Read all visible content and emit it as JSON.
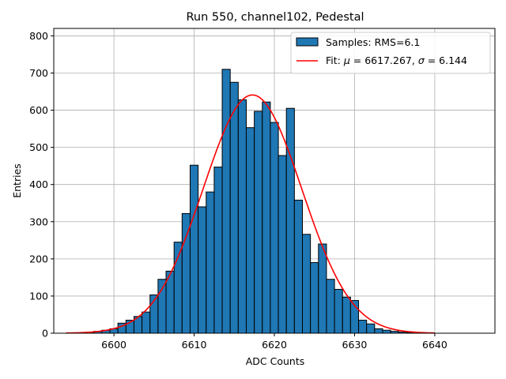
{
  "chart_data": {
    "type": "bar",
    "title": "Run 550, channel102, Pedestal",
    "xlabel": "ADC Counts",
    "ylabel": "Entries",
    "xlim": [
      6592.5,
      6647.5
    ],
    "ylim": [
      0,
      820
    ],
    "xticks": [
      6600,
      6610,
      6620,
      6630,
      6640
    ],
    "yticks": [
      0,
      100,
      200,
      300,
      400,
      500,
      600,
      700,
      800
    ],
    "grid": true,
    "legend_position": "top-right",
    "bin_width": 1,
    "bins": [
      {
        "x": 6595,
        "y": 1
      },
      {
        "x": 6596,
        "y": 1
      },
      {
        "x": 6597,
        "y": 2
      },
      {
        "x": 6598,
        "y": 5
      },
      {
        "x": 6599,
        "y": 8
      },
      {
        "x": 6600,
        "y": 12
      },
      {
        "x": 6601,
        "y": 27
      },
      {
        "x": 6602,
        "y": 35
      },
      {
        "x": 6603,
        "y": 45
      },
      {
        "x": 6604,
        "y": 57
      },
      {
        "x": 6605,
        "y": 103
      },
      {
        "x": 6606,
        "y": 145
      },
      {
        "x": 6607,
        "y": 167
      },
      {
        "x": 6608,
        "y": 245
      },
      {
        "x": 6609,
        "y": 322
      },
      {
        "x": 6610,
        "y": 452
      },
      {
        "x": 6611,
        "y": 340
      },
      {
        "x": 6612,
        "y": 380
      },
      {
        "x": 6613,
        "y": 447
      },
      {
        "x": 6614,
        "y": 710
      },
      {
        "x": 6615,
        "y": 675
      },
      {
        "x": 6616,
        "y": 628
      },
      {
        "x": 6617,
        "y": 553
      },
      {
        "x": 6618,
        "y": 597
      },
      {
        "x": 6619,
        "y": 622
      },
      {
        "x": 6620,
        "y": 567
      },
      {
        "x": 6621,
        "y": 478
      },
      {
        "x": 6622,
        "y": 605
      },
      {
        "x": 6623,
        "y": 358
      },
      {
        "x": 6624,
        "y": 266
      },
      {
        "x": 6625,
        "y": 190
      },
      {
        "x": 6626,
        "y": 240
      },
      {
        "x": 6627,
        "y": 145
      },
      {
        "x": 6628,
        "y": 118
      },
      {
        "x": 6629,
        "y": 97
      },
      {
        "x": 6630,
        "y": 88
      },
      {
        "x": 6631,
        "y": 35
      },
      {
        "x": 6632,
        "y": 25
      },
      {
        "x": 6633,
        "y": 12
      },
      {
        "x": 6634,
        "y": 8
      },
      {
        "x": 6635,
        "y": 5
      },
      {
        "x": 6636,
        "y": 3
      },
      {
        "x": 6637,
        "y": 2
      },
      {
        "x": 6638,
        "y": 1
      },
      {
        "x": 6639,
        "y": 1
      }
    ],
    "fit": {
      "mu": 6617.267,
      "sigma": 6.144,
      "amplitude": 641,
      "x_range": [
        6594,
        6640
      ]
    },
    "series": [
      {
        "name": "Samples: RMS=6.1",
        "type": "histogram",
        "color": "#1f77b4",
        "edgecolor": "#000000"
      },
      {
        "name": "Fit",
        "type": "line",
        "color": "#ff0000"
      }
    ],
    "legend": {
      "samples_label": "Samples: RMS=6.1",
      "fit_prefix": "Fit: ",
      "mu_symbol": "μ",
      "mu_text": " = 6617.267, ",
      "sigma_symbol": "σ",
      "sigma_text": " = 6.144"
    }
  }
}
